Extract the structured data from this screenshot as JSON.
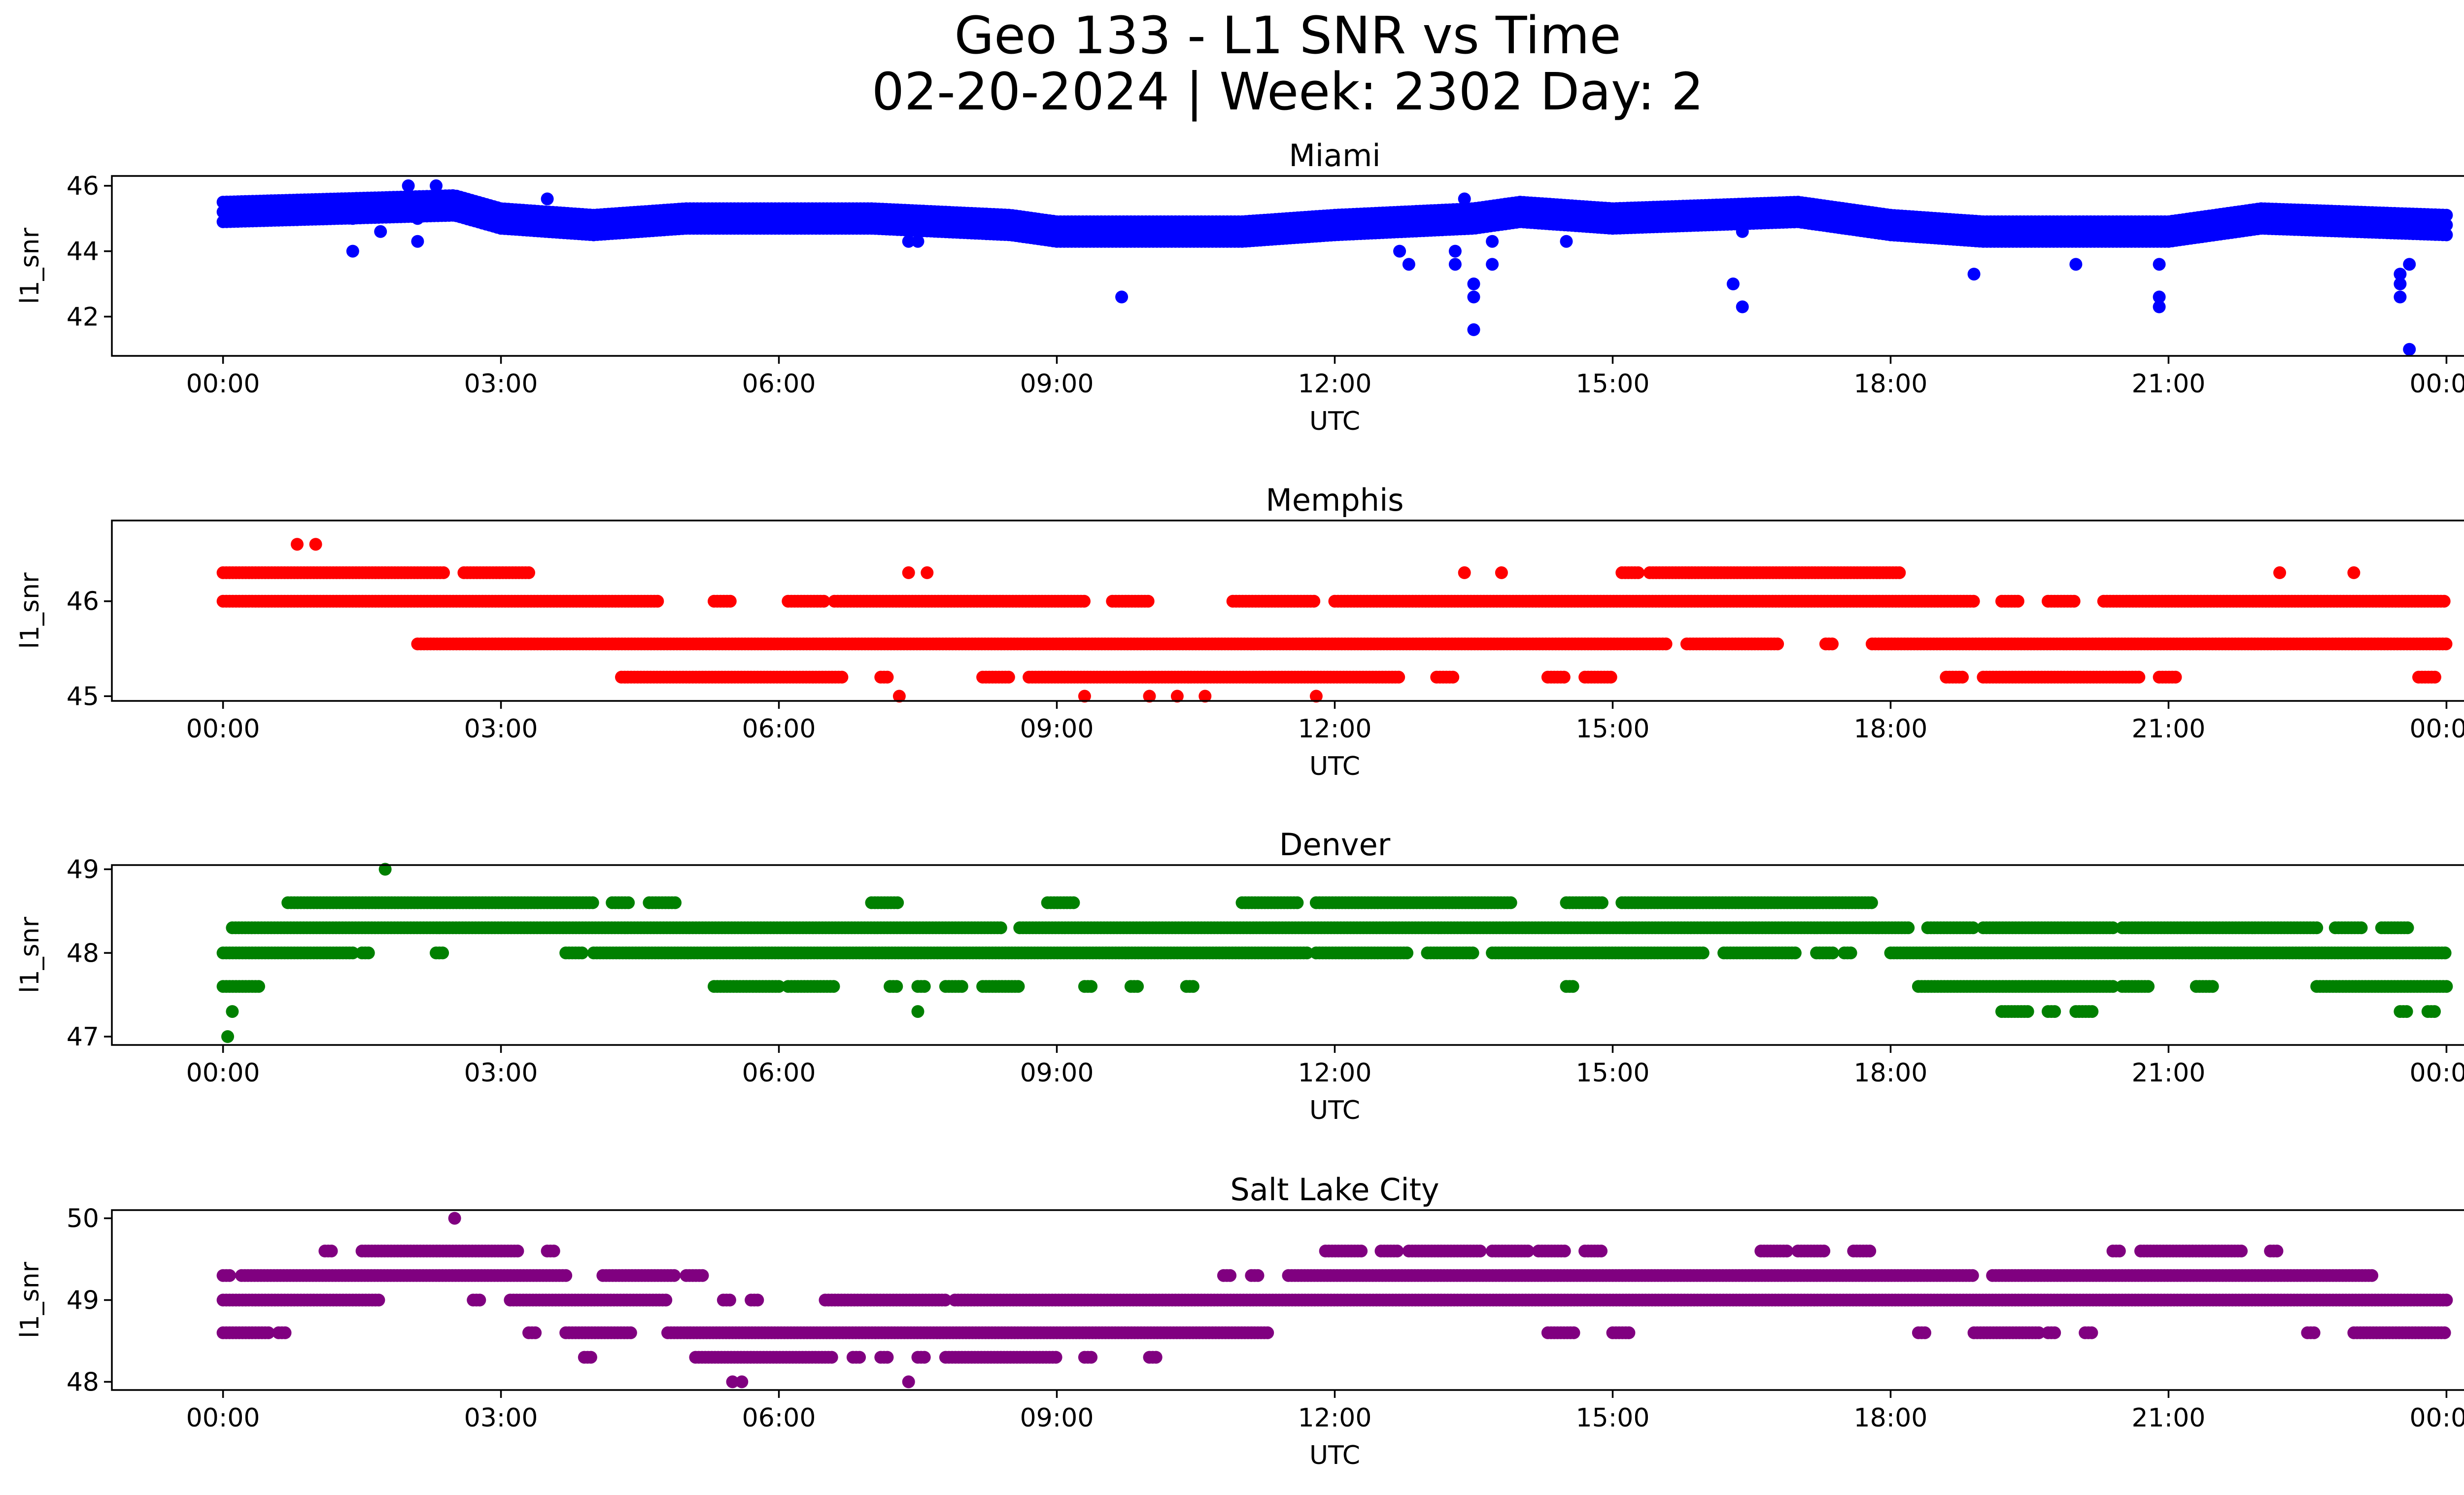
{
  "figure": {
    "title_line1": "Geo 133 - L1 SNR vs Time",
    "title_line2": "02-20-2024 | Week: 2302 Day: 2"
  },
  "chart_data": [
    {
      "type": "scatter",
      "title": "Miami",
      "xlabel": "UTC",
      "ylabel": "l1_snr",
      "color": "#0000ff",
      "xticks": [
        "00:00",
        "03:00",
        "06:00",
        "09:00",
        "12:00",
        "15:00",
        "18:00",
        "21:00",
        "00:00"
      ],
      "xlim_hours": [
        -1.2,
        25.2
      ],
      "yticks": [
        42,
        44,
        46
      ],
      "ylim": [
        40.8,
        46.3
      ],
      "series": [
        {
          "kind": "band",
          "start": 0.0,
          "end": 24.0,
          "step": 0.04,
          "values_by_hour": [
            [
              0,
              45.2
            ],
            [
              2.5,
              45.4
            ],
            [
              3.0,
              45.0
            ],
            [
              4.0,
              44.8
            ],
            [
              5.0,
              45.0
            ],
            [
              7.0,
              45.0
            ],
            [
              8.5,
              44.8
            ],
            [
              9.0,
              44.6
            ],
            [
              11.0,
              44.6
            ],
            [
              12.0,
              44.8
            ],
            [
              13.5,
              45.0
            ],
            [
              14.0,
              45.2
            ],
            [
              15.0,
              45.0
            ],
            [
              17.0,
              45.2
            ],
            [
              18.0,
              44.8
            ],
            [
              19.0,
              44.6
            ],
            [
              21.0,
              44.6
            ],
            [
              22.0,
              45.0
            ],
            [
              24.0,
              44.8
            ]
          ],
          "spread": 0.6
        },
        {
          "kind": "points",
          "x": [
            1.4,
            1.4,
            1.7,
            2.0,
            2.1,
            2.1,
            2.3,
            3.5,
            4.2,
            7.4,
            7.5,
            9.7,
            12.7,
            12.8,
            13.3,
            13.3,
            13.4,
            13.5,
            13.5,
            13.5,
            13.7,
            13.7,
            14.5,
            16.3,
            16.4,
            16.4,
            18.9,
            20.0,
            20.9,
            20.9,
            20.9,
            23.5,
            23.5,
            23.5,
            23.6,
            23.6
          ],
          "y": [
            44.0,
            45.0,
            44.6,
            46.0,
            45.0,
            44.3,
            46.0,
            45.6,
            44.6,
            44.3,
            44.3,
            42.6,
            44.0,
            43.6,
            44.0,
            43.6,
            45.6,
            42.6,
            43.0,
            41.6,
            43.6,
            44.3,
            44.3,
            43.0,
            42.3,
            44.6,
            43.3,
            43.6,
            43.6,
            42.6,
            42.3,
            43.3,
            43.0,
            42.6,
            43.6,
            41.0
          ]
        }
      ]
    },
    {
      "type": "scatter",
      "title": "Memphis",
      "xlabel": "UTC",
      "ylabel": "l1_snr",
      "color": "#ff0000",
      "xticks": [
        "00:00",
        "03:00",
        "06:00",
        "09:00",
        "12:00",
        "15:00",
        "18:00",
        "21:00",
        "00:00"
      ],
      "xlim_hours": [
        -1.2,
        25.2
      ],
      "yticks": [
        45,
        46
      ],
      "ylim": [
        44.95,
        46.85
      ],
      "series": [
        {
          "kind": "runs",
          "level": 46.3,
          "ranges": [
            [
              0.0,
              2.4
            ],
            [
              2.6,
              3.3
            ],
            [
              15.1,
              15.3
            ],
            [
              15.4,
              18.1
            ]
          ]
        },
        {
          "kind": "runs",
          "level": 46.0,
          "ranges": [
            [
              0.0,
              4.7
            ],
            [
              5.3,
              5.5
            ],
            [
              6.1,
              6.5
            ],
            [
              6.6,
              9.3
            ],
            [
              9.6,
              10.0
            ],
            [
              10.9,
              11.8
            ],
            [
              12.0,
              18.9
            ],
            [
              19.2,
              19.4
            ],
            [
              19.7,
              20.0
            ],
            [
              20.3,
              24.0
            ]
          ]
        },
        {
          "kind": "runs",
          "level": 45.55,
          "ranges": [
            [
              2.1,
              15.6
            ],
            [
              15.8,
              16.8
            ],
            [
              17.3,
              17.4
            ],
            [
              17.8,
              24.0
            ]
          ]
        },
        {
          "kind": "runs",
          "level": 45.2,
          "ranges": [
            [
              4.3,
              6.7
            ],
            [
              7.1,
              7.2
            ],
            [
              8.2,
              8.5
            ],
            [
              8.7,
              12.7
            ],
            [
              13.1,
              13.3
            ],
            [
              14.3,
              14.5
            ],
            [
              14.7,
              15.0
            ],
            [
              18.6,
              18.8
            ],
            [
              19.0,
              20.7
            ],
            [
              20.9,
              21.1
            ],
            [
              23.7,
              23.9
            ]
          ]
        },
        {
          "kind": "points",
          "x": [
            0.8,
            1.0,
            7.4,
            7.6,
            13.4,
            13.8,
            22.2,
            23.0,
            7.3,
            9.3,
            10.0,
            10.3,
            10.6,
            11.8
          ],
          "y": [
            46.6,
            46.6,
            46.3,
            46.3,
            46.3,
            46.3,
            46.3,
            46.3,
            45.0,
            45.0,
            45.0,
            45.0,
            45.0,
            45.0
          ]
        }
      ]
    },
    {
      "type": "scatter",
      "title": "Denver",
      "xlabel": "UTC",
      "ylabel": "l1_snr",
      "color": "#008000",
      "xticks": [
        "00:00",
        "03:00",
        "06:00",
        "09:00",
        "12:00",
        "15:00",
        "18:00",
        "21:00",
        "00:00"
      ],
      "xlim_hours": [
        -1.2,
        25.2
      ],
      "yticks": [
        47,
        48,
        49
      ],
      "ylim": [
        46.9,
        49.05
      ],
      "series": [
        {
          "kind": "runs",
          "level": 48.6,
          "ranges": [
            [
              0.7,
              4.0
            ],
            [
              4.2,
              4.4
            ],
            [
              4.6,
              4.9
            ],
            [
              7.0,
              7.3
            ],
            [
              8.9,
              9.2
            ],
            [
              11.0,
              11.6
            ],
            [
              11.8,
              13.9
            ],
            [
              14.5,
              14.9
            ],
            [
              15.1,
              17.8
            ]
          ]
        },
        {
          "kind": "runs",
          "level": 48.3,
          "ranges": [
            [
              0.1,
              8.4
            ],
            [
              8.6,
              18.2
            ],
            [
              18.4,
              18.9
            ],
            [
              19.0,
              20.4
            ],
            [
              20.5,
              22.6
            ],
            [
              22.8,
              23.1
            ],
            [
              23.3,
              23.6
            ]
          ]
        },
        {
          "kind": "runs",
          "level": 48.0,
          "ranges": [
            [
              0.0,
              1.4
            ],
            [
              1.5,
              1.6
            ],
            [
              2.3,
              2.4
            ],
            [
              3.7,
              3.9
            ],
            [
              4.0,
              11.7
            ],
            [
              11.8,
              12.8
            ],
            [
              13.0,
              13.5
            ],
            [
              13.7,
              16.0
            ],
            [
              16.2,
              17.0
            ],
            [
              17.2,
              17.4
            ],
            [
              17.5,
              17.6
            ],
            [
              18.0,
              24.0
            ]
          ]
        },
        {
          "kind": "runs",
          "level": 47.6,
          "ranges": [
            [
              0.0,
              0.4
            ],
            [
              5.3,
              6.0
            ],
            [
              6.1,
              6.6
            ],
            [
              7.2,
              7.3
            ],
            [
              7.5,
              7.6
            ],
            [
              7.8,
              8.0
            ],
            [
              8.2,
              8.6
            ],
            [
              9.3,
              9.4
            ],
            [
              9.8,
              9.9
            ],
            [
              10.4,
              10.5
            ],
            [
              14.5,
              14.6
            ],
            [
              18.3,
              20.4
            ],
            [
              20.5,
              20.8
            ],
            [
              21.3,
              21.5
            ],
            [
              22.6,
              24.0
            ]
          ]
        },
        {
          "kind": "runs",
          "level": 47.3,
          "ranges": [
            [
              19.2,
              19.5
            ],
            [
              19.7,
              19.8
            ],
            [
              20.0,
              20.2
            ],
            [
              23.5,
              23.6
            ],
            [
              23.8,
              23.9
            ]
          ]
        },
        {
          "kind": "points",
          "x": [
            0.05,
            0.1,
            1.75,
            7.5
          ],
          "y": [
            47.0,
            47.3,
            49.0,
            47.3
          ]
        }
      ]
    },
    {
      "type": "scatter",
      "title": "Salt Lake City",
      "xlabel": "UTC",
      "ylabel": "l1_snr",
      "color": "#800080",
      "xticks": [
        "00:00",
        "03:00",
        "06:00",
        "09:00",
        "12:00",
        "15:00",
        "18:00",
        "21:00",
        "00:00"
      ],
      "xlim_hours": [
        -1.2,
        25.2
      ],
      "yticks": [
        48,
        49,
        50
      ],
      "ylim": [
        47.9,
        50.1
      ],
      "series": [
        {
          "kind": "runs",
          "level": 49.6,
          "ranges": [
            [
              1.1,
              1.2
            ],
            [
              1.5,
              3.2
            ],
            [
              3.5,
              3.6
            ],
            [
              11.9,
              12.3
            ],
            [
              12.5,
              12.7
            ],
            [
              12.8,
              13.6
            ],
            [
              13.7,
              14.1
            ],
            [
              14.2,
              14.5
            ],
            [
              14.7,
              14.9
            ],
            [
              16.6,
              16.9
            ],
            [
              17.0,
              17.3
            ],
            [
              17.6,
              17.8
            ],
            [
              20.4,
              20.5
            ],
            [
              20.7,
              21.8
            ],
            [
              22.1,
              22.2
            ]
          ]
        },
        {
          "kind": "runs",
          "level": 49.3,
          "ranges": [
            [
              0.0,
              0.1
            ],
            [
              0.2,
              3.7
            ],
            [
              4.1,
              4.9
            ],
            [
              5.0,
              5.2
            ],
            [
              10.8,
              10.9
            ],
            [
              11.1,
              11.2
            ],
            [
              11.5,
              18.9
            ],
            [
              19.1,
              23.2
            ]
          ]
        },
        {
          "kind": "runs",
          "level": 49.0,
          "ranges": [
            [
              0.0,
              1.7
            ],
            [
              2.7,
              2.8
            ],
            [
              3.1,
              4.8
            ],
            [
              5.4,
              5.5
            ],
            [
              5.7,
              5.8
            ],
            [
              6.5,
              7.8
            ],
            [
              7.9,
              24.0
            ]
          ]
        },
        {
          "kind": "runs",
          "level": 48.6,
          "ranges": [
            [
              0.0,
              0.5
            ],
            [
              0.6,
              0.7
            ],
            [
              3.3,
              3.4
            ],
            [
              3.7,
              4.4
            ],
            [
              4.8,
              11.3
            ],
            [
              14.3,
              14.6
            ],
            [
              15.0,
              15.2
            ],
            [
              18.3,
              18.4
            ],
            [
              18.9,
              19.6
            ],
            [
              19.7,
              19.8
            ],
            [
              20.1,
              20.2
            ],
            [
              22.5,
              22.6
            ],
            [
              23.0,
              24.0
            ]
          ]
        },
        {
          "kind": "runs",
          "level": 48.3,
          "ranges": [
            [
              3.9,
              4.0
            ],
            [
              5.1,
              6.6
            ],
            [
              6.8,
              6.9
            ],
            [
              7.1,
              7.2
            ],
            [
              7.5,
              7.6
            ],
            [
              7.8,
              9.0
            ],
            [
              9.3,
              9.4
            ],
            [
              10.0,
              10.1
            ]
          ]
        },
        {
          "kind": "points",
          "x": [
            2.5,
            5.5,
            5.6,
            7.4
          ],
          "y": [
            50.0,
            48.0,
            48.0,
            48.0
          ]
        }
      ]
    }
  ]
}
